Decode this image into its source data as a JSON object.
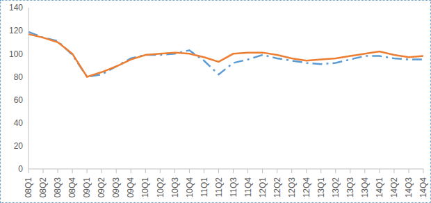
{
  "chart_data": {
    "type": "line",
    "categories": [
      "08Q1",
      "08Q2",
      "08Q3",
      "08Q4",
      "09Q1",
      "09Q2",
      "09Q3",
      "09Q4",
      "10Q1",
      "10Q2",
      "10Q3",
      "10Q4",
      "11Q1",
      "11Q2",
      "11Q3",
      "11Q4",
      "12Q1",
      "12Q2",
      "12Q3",
      "12Q4",
      "13Q1",
      "13Q2",
      "13Q3",
      "13Q4",
      "14Q1",
      "14Q2",
      "14Q3",
      "14Q4"
    ],
    "series": [
      {
        "color": "#5B9BD5",
        "line_style": "dashdot",
        "values": [
          119,
          114,
          111,
          99,
          80,
          82,
          89,
          96,
          99,
          99,
          100,
          103,
          94,
          82,
          92,
          95,
          99,
          96,
          94,
          92,
          91,
          92,
          95,
          98,
          98,
          96,
          95,
          95
        ]
      },
      {
        "color": "#ED7D31",
        "line_style": "solid",
        "values": [
          117,
          114,
          110,
          100,
          80,
          84,
          89,
          95,
          99,
          100,
          101,
          100,
          97,
          93,
          100,
          101,
          101,
          99,
          96,
          94,
          95,
          96,
          98,
          100,
          102,
          99,
          97,
          98
        ]
      }
    ],
    "ylim": [
      0,
      140
    ],
    "yticks": [
      0,
      20,
      40,
      60,
      80,
      100,
      120,
      140
    ],
    "grid": false
  }
}
